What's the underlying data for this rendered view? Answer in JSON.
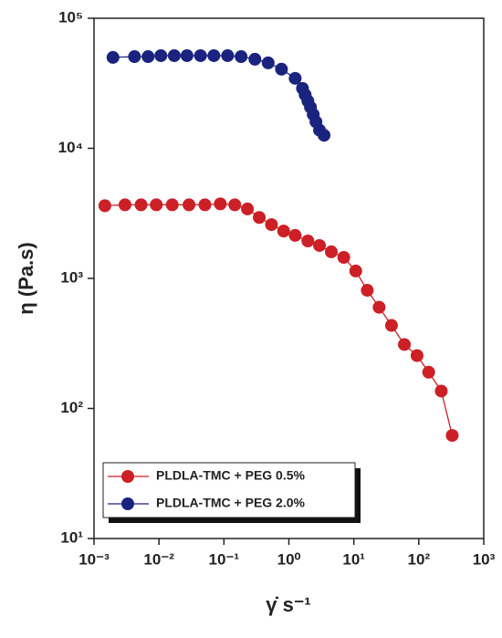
{
  "chart_data": {
    "type": "line",
    "x_label": "γ̇ s⁻¹",
    "y_label": "η (Pa.s)",
    "xscale": "log",
    "yscale": "log",
    "xlim": [
      0.001,
      1000
    ],
    "ylim": [
      10,
      100000
    ],
    "xticks": [
      {
        "value": 0.001,
        "label": "10⁻³"
      },
      {
        "value": 0.01,
        "label": "10⁻²"
      },
      {
        "value": 0.1,
        "label": "10⁻¹"
      },
      {
        "value": 1,
        "label": "10⁰"
      },
      {
        "value": 10,
        "label": "10¹"
      },
      {
        "value": 100,
        "label": "10²"
      },
      {
        "value": 1000,
        "label": "10³"
      }
    ],
    "yticks": [
      {
        "value": 10,
        "label": "10¹"
      },
      {
        "value": 100,
        "label": "10²"
      },
      {
        "value": 1000,
        "label": "10³"
      },
      {
        "value": 10000,
        "label": "10⁴"
      },
      {
        "value": 100000,
        "label": "10⁵"
      }
    ],
    "legend": "lower left",
    "series": [
      {
        "name": "PLDLA-TMC + PEG 0.5%",
        "color": "#cc1f26",
        "x": [
          0.00147,
          0.003,
          0.0053,
          0.0091,
          0.016,
          0.029,
          0.051,
          0.088,
          0.147,
          0.23,
          0.35,
          0.54,
          0.83,
          1.25,
          1.96,
          2.96,
          4.5,
          7.0,
          10.7,
          16.1,
          24.5,
          38,
          60,
          94,
          142,
          222,
          327
        ],
        "values": [
          3620,
          3680,
          3680,
          3680,
          3680,
          3680,
          3680,
          3740,
          3680,
          3420,
          2940,
          2590,
          2310,
          2140,
          1940,
          1790,
          1600,
          1450,
          1140,
          810,
          600,
          435,
          310,
          255,
          190,
          136,
          62
        ]
      },
      {
        "name": "PLDLA-TMC + PEG 2.0%",
        "color": "#1a237e",
        "x": [
          0.00196,
          0.0042,
          0.0068,
          0.0107,
          0.0172,
          0.027,
          0.0436,
          0.07,
          0.114,
          0.184,
          0.3,
          0.48,
          0.77,
          1.25,
          1.62,
          1.78,
          1.96,
          2.15,
          2.37,
          2.61,
          2.96,
          3.48
        ],
        "values": [
          50000,
          50700,
          50700,
          51600,
          51600,
          51600,
          51600,
          51600,
          51600,
          50700,
          48400,
          45400,
          40600,
          34500,
          28900,
          25800,
          23100,
          20700,
          18200,
          16000,
          13800,
          12600
        ]
      }
    ]
  }
}
